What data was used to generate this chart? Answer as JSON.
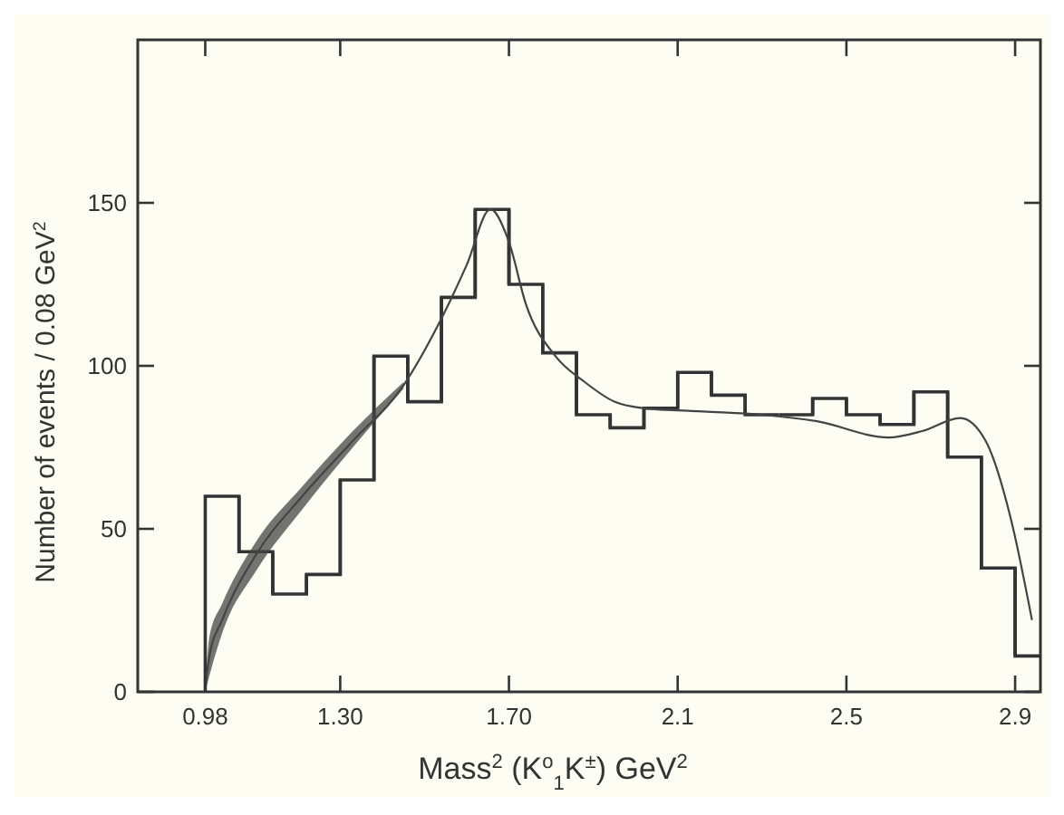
{
  "chart_data": {
    "type": "histogram",
    "xlabel": "Mass$^{2}$  (K$^{o}$$_{1}$K$^{±}$)      GeV$^{2}$",
    "ylabel": "Number of events / 0.08 GeV$^{2}$",
    "bins": [
      0.98,
      1.06,
      1.14,
      1.22,
      1.3,
      1.38,
      1.46,
      1.54,
      1.62,
      1.7,
      1.78,
      1.86,
      1.94,
      2.02,
      2.1,
      2.18,
      2.26,
      2.34,
      2.42,
      2.5,
      2.58,
      2.66,
      2.74,
      2.82,
      2.9,
      2.98
    ],
    "values": [
      60,
      43,
      30,
      36,
      65,
      103,
      89,
      121,
      148,
      125,
      104,
      85,
      81,
      87,
      98,
      91,
      85,
      85,
      90,
      85,
      82,
      92,
      72,
      38,
      11
    ],
    "color": "#333333",
    "series": [
      {
        "type": "line",
        "color": "#444444",
        "x": [
          0.98,
          0.99,
          1.02,
          1.1,
          1.21,
          1.33,
          1.45,
          1.53,
          1.6,
          1.656,
          1.7,
          1.74,
          1.81,
          1.88,
          1.95,
          2.02,
          2.16,
          2.3,
          2.43,
          2.6,
          2.68,
          2.77,
          2.83,
          2.89,
          2.94
        ],
        "values": [
          1,
          11,
          22,
          42,
          60,
          77,
          94,
          112,
          131,
          148,
          138,
          119,
          103,
          95,
          89,
          87,
          86,
          85,
          83,
          78,
          80,
          84,
          77,
          53,
          22
        ],
        "lower": [
          0,
          5,
          18,
          37,
          56,
          75,
          93,
          null,
          null,
          null,
          null,
          null,
          null,
          null,
          null,
          null,
          null,
          null,
          null,
          null,
          null,
          null,
          null,
          null,
          null
        ],
        "upper": [
          1,
          17,
          27,
          46,
          63,
          80,
          95,
          null,
          null,
          null,
          null,
          null,
          null,
          null,
          null,
          null,
          null,
          null,
          null,
          null,
          null,
          null,
          null,
          null,
          null
        ]
      }
    ],
    "xlim": [
      0.82,
      2.96
    ],
    "ylim": [
      0,
      200
    ],
    "xticks": [
      0.98,
      {
        "value": 1.3,
        "label": "1.30"
      },
      {
        "value": 1.7,
        "label": "1.70"
      },
      2.1,
      2.5,
      2.9
    ],
    "yticks": [
      0,
      50,
      100,
      150
    ],
    "grid": false
  }
}
